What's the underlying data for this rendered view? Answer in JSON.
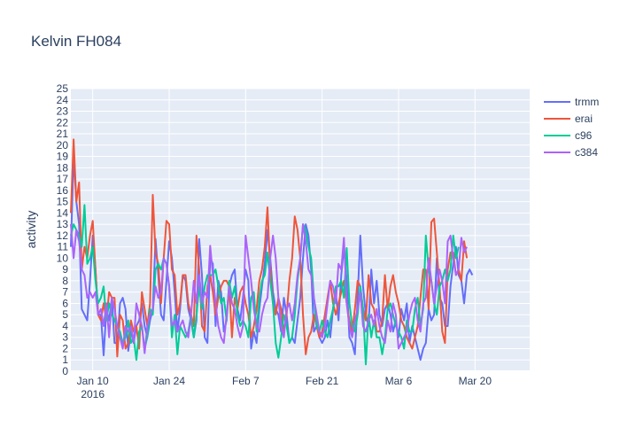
{
  "chart_data": {
    "type": "line",
    "title": "Kelvin FH084",
    "xlabel": "",
    "ylabel": "activity",
    "x_start": "2016-01-06",
    "x_end": "2016-03-30",
    "xlim": [
      "2016-01-06",
      "2016-03-30"
    ],
    "ylim": [
      0,
      25
    ],
    "y_ticks": [
      0,
      1,
      2,
      3,
      4,
      5,
      6,
      7,
      8,
      9,
      10,
      11,
      12,
      13,
      14,
      15,
      16,
      17,
      18,
      19,
      20,
      21,
      22,
      23,
      24,
      25
    ],
    "x_ticks": [
      {
        "date": "2016-01-10",
        "label": "Jan 10",
        "sublabel": "2016"
      },
      {
        "date": "2016-01-24",
        "label": "Jan 24",
        "sublabel": ""
      },
      {
        "date": "2016-02-07",
        "label": "Feb 7",
        "sublabel": ""
      },
      {
        "date": "2016-02-21",
        "label": "Feb 21",
        "sublabel": ""
      },
      {
        "date": "2016-03-06",
        "label": "Mar 6",
        "sublabel": ""
      },
      {
        "date": "2016-03-20",
        "label": "Mar 20",
        "sublabel": ""
      }
    ],
    "grid": true,
    "legend_position": "top-right",
    "series": [
      {
        "name": "trmm",
        "color": "#636efa",
        "values": [
          11,
          19,
          15,
          13,
          5.5,
          5,
          4.5,
          8,
          12,
          9,
          5,
          5,
          1.4,
          5.5,
          4.5,
          6.5,
          2.5,
          2.5,
          6,
          6.5,
          5.5,
          1.8,
          3.5,
          2.5,
          4,
          4.5,
          6,
          4,
          3,
          4.5,
          5.5,
          11.7,
          8.5,
          5,
          4.5,
          8,
          11.5,
          10,
          7,
          3.5,
          5.5,
          8.5,
          8,
          5.5,
          4.5,
          3,
          4.5,
          11.7,
          8.5,
          3,
          2.5,
          10,
          9.5,
          4,
          8,
          7,
          3.5,
          4.5,
          7.5,
          8.5,
          9,
          5.5,
          4.5,
          6.5,
          9,
          8,
          2,
          3.5,
          2.5,
          5.5,
          7.5,
          9.5,
          12.5,
          10,
          7,
          5.5,
          5,
          3.5,
          6.5,
          5,
          2.5,
          3,
          2.5,
          4.5,
          6.5,
          10,
          13,
          12,
          9,
          3.5,
          4,
          3,
          2.5,
          3,
          4.5,
          3,
          5.5,
          7,
          4.5,
          8.5,
          11,
          8,
          3,
          2.5,
          1.5,
          6.5,
          12,
          7.5,
          5,
          4,
          9,
          6,
          8,
          5,
          4,
          5.5,
          6,
          5,
          3.5,
          4.5,
          3,
          5.5,
          4.5,
          6,
          2.5,
          4,
          3,
          2,
          1,
          2,
          2.5,
          5.5,
          4.5,
          5,
          10,
          6.5,
          6,
          4,
          4,
          7.5,
          9.5,
          11,
          8.5,
          8,
          6,
          8.5,
          9,
          8.5
        ],
        "values_per_day": 2
      },
      {
        "name": "erai",
        "color": "#ef553b",
        "values": [
          14,
          20.5,
          15,
          16.7,
          9,
          11,
          10,
          12,
          13.3,
          9,
          5,
          4.5,
          6,
          4.5,
          7,
          6.5,
          6.5,
          1.3,
          5,
          4.5,
          2,
          2.5,
          4.5,
          3.5,
          4,
          2,
          7,
          5.5,
          4,
          6,
          15.6,
          10.5,
          9.5,
          6,
          10,
          13.3,
          13,
          9,
          8.5,
          5,
          6,
          8.5,
          8.5,
          6,
          5,
          4,
          12,
          9,
          4,
          3.5,
          7.5,
          8.5,
          7,
          5,
          6.5,
          7.5,
          8,
          8,
          7.5,
          3,
          6.5,
          5.5,
          7,
          7.5,
          6,
          5,
          3,
          4,
          5.5,
          8,
          9,
          11,
          14.5,
          9,
          6,
          5,
          6.5,
          5.5,
          3.5,
          5,
          8,
          10,
          13.7,
          12.5,
          10,
          5,
          1.5,
          3,
          3.5,
          5,
          4,
          3,
          3.5,
          5,
          6.5,
          8,
          6,
          5,
          6,
          7,
          8,
          6,
          4.5,
          3.5,
          5.5,
          8,
          7.5,
          5.5,
          4.5,
          8.5,
          6,
          5.5,
          3.5,
          3.5,
          4.5,
          8.5,
          5.5,
          7.5,
          8.5,
          7,
          6,
          4.5,
          4,
          3,
          2.5,
          2,
          3,
          4,
          6.5,
          9,
          9,
          5.5,
          13.2,
          13.5,
          10.5,
          7.5,
          3.5,
          2.5,
          9,
          10.5,
          10.5,
          8.5,
          9,
          8,
          11.5,
          10
        ],
        "values_per_day": 2
      },
      {
        "name": "c96",
        "color": "#00cc96",
        "values": [
          12,
          13,
          12.5,
          12,
          11,
          14.7,
          9.5,
          10,
          11,
          8,
          6,
          6.5,
          7.5,
          4.5,
          6,
          5,
          4.5,
          4,
          3.5,
          2.5,
          3,
          4.5,
          2.5,
          3,
          1,
          3.5,
          4,
          2,
          3,
          5.5,
          5,
          9,
          9.5,
          9,
          10,
          9.5,
          7.5,
          3,
          5,
          1.5,
          4,
          3.5,
          3,
          3.5,
          5,
          3,
          5,
          7.5,
          5.5,
          7.5,
          8.5,
          8.5,
          8.5,
          9,
          7.5,
          6,
          6.5,
          4.5,
          8,
          6.5,
          7.5,
          5,
          4,
          4.5,
          4,
          3,
          6.5,
          7,
          3.5,
          6.5,
          8,
          8.5,
          10.5,
          8,
          6,
          2.5,
          1.2,
          3,
          5,
          4,
          2.5,
          3,
          5,
          8,
          10,
          13,
          12.5,
          11,
          10,
          6.5,
          4,
          3.5,
          4.5,
          3.5,
          3,
          4.5,
          5.5,
          7.5,
          7.5,
          8,
          6.5,
          10.9,
          6,
          4,
          3.5,
          5,
          7.5,
          5.5,
          0.6,
          5,
          3,
          4.5,
          3,
          3,
          1.5,
          3,
          5.5,
          6,
          5,
          4,
          3.5,
          3,
          2,
          4.5,
          3.5,
          3.5,
          5.5,
          6.5,
          4,
          5.5,
          12,
          9,
          8,
          6,
          5,
          7.5,
          8,
          9,
          8,
          9,
          12,
          10,
          11
        ],
        "values_per_day": 2
      },
      {
        "name": "c384",
        "color": "#ab63fa",
        "values": [
          13,
          10,
          12.5,
          11.5,
          9,
          8.5,
          6.5,
          7,
          6.5,
          7,
          5,
          5.5,
          4,
          6,
          3,
          6.5,
          5.5,
          4,
          3,
          2,
          4,
          3.5,
          4,
          2.5,
          6,
          5,
          4,
          1.6,
          4,
          5,
          5.5,
          7.5,
          6.5,
          7,
          10,
          9.5,
          7.5,
          4,
          4.5,
          3.5,
          4,
          4.5,
          3.5,
          3,
          5,
          8,
          6,
          8.5,
          6,
          7,
          6.5,
          11.1,
          8.5,
          6,
          4,
          3,
          2.5,
          5,
          7.5,
          6,
          5.5,
          4,
          3,
          4,
          12,
          10,
          8,
          5.5,
          4,
          3.5,
          5,
          6,
          6.5,
          10,
          12,
          10,
          6.5,
          4,
          3,
          5.5,
          6,
          4.5,
          6,
          8.5,
          10,
          13,
          11.5,
          9,
          8.5,
          6.5,
          5,
          3.5,
          3,
          4,
          6,
          8,
          7.5,
          6,
          9.5,
          9,
          11.8,
          6,
          4,
          3,
          4.5,
          5.5,
          7,
          4,
          3.5,
          4.5,
          5,
          4,
          5.5,
          4,
          3,
          2.5,
          4.5,
          3.5,
          6,
          5,
          2,
          2.5,
          3,
          3.5,
          5,
          6,
          6.5,
          4.5,
          3.5,
          6,
          6.5,
          10,
          8,
          6,
          7.5,
          9,
          8,
          6,
          11.5,
          12,
          10,
          8.5,
          9,
          11.8,
          10.5,
          11
        ],
        "values_per_day": 2
      }
    ]
  }
}
